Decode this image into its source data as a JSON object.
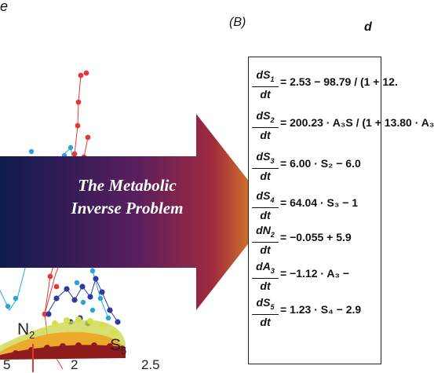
{
  "panel_a": {
    "corner_letter": "e",
    "x_ticks": [
      "5",
      "2",
      "2.5"
    ],
    "labels": {
      "n2": "N",
      "n2_sub": "2",
      "s5": "S",
      "s5_sub": "5"
    },
    "series_colors": [
      "#e53935",
      "#29a3e0",
      "#2f3b9a",
      "#8e1c1c",
      "#f0a020",
      "#c8d640"
    ]
  },
  "arrow": {
    "line1": "The Metabolic",
    "line2": "Inverse Problem",
    "colors": [
      "#0f1b4e",
      "#5a1e5e",
      "#a02a3e",
      "#f0a020"
    ]
  },
  "panel_b": {
    "letter": "(B)",
    "heading": "d",
    "equations": [
      {
        "num": "dS",
        "sub": "1",
        "den": "dt",
        "rhs": "= 2.53 − 98.79 / (1 + 12."
      },
      {
        "num": "dS",
        "sub": "2",
        "den": "dt",
        "rhs": "= 200.23 · A₃S / (1 + 13.80 · A₃"
      },
      {
        "num": "dS",
        "sub": "3",
        "den": "dt",
        "rhs": "= 6.00 · S₂ − 6.0"
      },
      {
        "num": "dS",
        "sub": "4",
        "den": "dt",
        "rhs": "= 64.04 · S₃ − 1"
      },
      {
        "num": "dN",
        "sub": "2",
        "den": "dt",
        "rhs": "= −0.055 + 5.9"
      },
      {
        "num": "dA",
        "sub": "3",
        "den": "dt",
        "rhs": "= −1.12 · A₃ −"
      },
      {
        "num": "dS",
        "sub": "5",
        "den": "dt",
        "rhs": "= 1.23 · S₄ − 2.9"
      }
    ]
  }
}
